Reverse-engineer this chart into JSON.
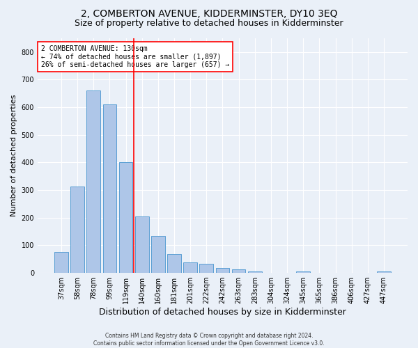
{
  "title": "2, COMBERTON AVENUE, KIDDERMINSTER, DY10 3EQ",
  "subtitle": "Size of property relative to detached houses in Kidderminster",
  "xlabel": "Distribution of detached houses by size in Kidderminster",
  "ylabel": "Number of detached properties",
  "categories": [
    "37sqm",
    "58sqm",
    "78sqm",
    "99sqm",
    "119sqm",
    "140sqm",
    "160sqm",
    "181sqm",
    "201sqm",
    "222sqm",
    "242sqm",
    "263sqm",
    "283sqm",
    "304sqm",
    "324sqm",
    "345sqm",
    "365sqm",
    "386sqm",
    "406sqm",
    "427sqm",
    "447sqm"
  ],
  "values": [
    75,
    312,
    660,
    610,
    400,
    205,
    135,
    68,
    38,
    32,
    17,
    12,
    5,
    0,
    0,
    5,
    0,
    0,
    0,
    0,
    5
  ],
  "bar_color": "#aec6e8",
  "bar_edge_color": "#5a9fd4",
  "vline_color": "red",
  "annotation_line1": "2 COMBERTON AVENUE: 130sqm",
  "annotation_line2": "← 74% of detached houses are smaller (1,897)",
  "annotation_line3": "26% of semi-detached houses are larger (657) →",
  "annotation_box_color": "white",
  "annotation_box_edge_color": "red",
  "ylim": [
    0,
    850
  ],
  "yticks": [
    0,
    100,
    200,
    300,
    400,
    500,
    600,
    700,
    800
  ],
  "title_fontsize": 10,
  "subtitle_fontsize": 9,
  "xlabel_fontsize": 9,
  "ylabel_fontsize": 8,
  "tick_fontsize": 7,
  "annotation_fontsize": 7,
  "footer_text": "Contains HM Land Registry data © Crown copyright and database right 2024.\nContains public sector information licensed under the Open Government Licence v3.0.",
  "footer_fontsize": 5.5,
  "background_color": "#eaf0f8",
  "grid_color": "white"
}
